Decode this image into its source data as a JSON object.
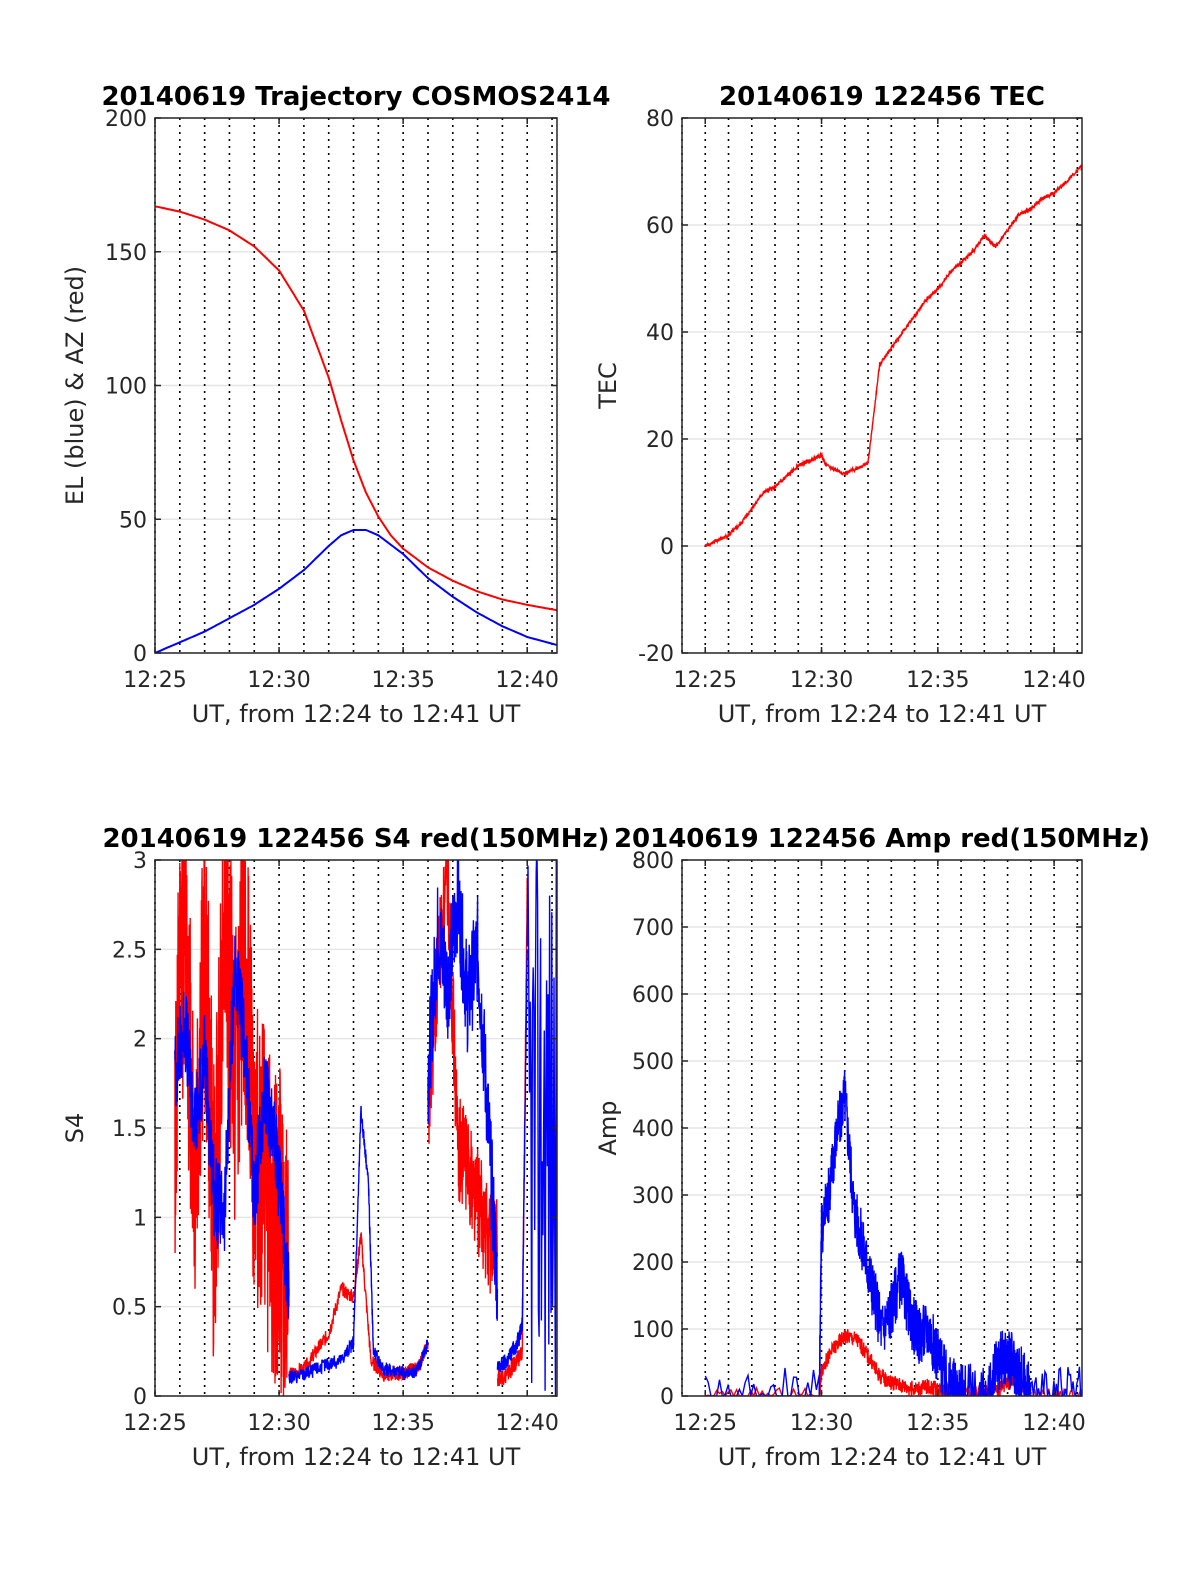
{
  "chart_data": [
    {
      "type": "line",
      "title": "20140619 Trajectory COSMOS2414",
      "xlabel": "UT, from 12:24 to 12:41 UT",
      "ylabel": "EL (blue) & AZ (red)",
      "xlim": [
        0,
        16.2
      ],
      "ylim": [
        0,
        200
      ],
      "xticks": [
        0,
        5,
        10,
        15
      ],
      "xtick_labels": [
        "12:25",
        "12:30",
        "12:35",
        "12:40"
      ],
      "yticks": [
        0,
        50,
        100,
        150,
        200
      ],
      "ytick_labels": [
        "0",
        "50",
        "100",
        "150",
        "200"
      ],
      "grid": true,
      "series": [
        {
          "color": "#ff0000",
          "noise": 0,
          "seed": 0,
          "x": [
            0,
            1,
            2,
            3,
            4,
            5,
            6,
            7,
            7.5,
            8,
            8.5,
            9,
            9.5,
            10,
            11,
            12,
            13,
            14,
            15,
            16.2
          ],
          "y": [
            167,
            165,
            162,
            158,
            152,
            143,
            128,
            103,
            87,
            72,
            60,
            51,
            44,
            39,
            32,
            27,
            23,
            20,
            18,
            16
          ]
        },
        {
          "color": "#0000ff",
          "noise": 0,
          "seed": 0,
          "x": [
            0,
            1,
            2,
            3,
            4,
            5,
            6,
            7,
            7.5,
            8,
            8.5,
            9,
            10,
            11,
            12,
            13,
            14,
            15,
            16.2
          ],
          "y": [
            0,
            4,
            8,
            13,
            18,
            24,
            31,
            40,
            44,
            46,
            46,
            44,
            37,
            28,
            21,
            15,
            10,
            6,
            3
          ]
        }
      ]
    },
    {
      "type": "line",
      "title": "20140619 122456 TEC",
      "xlabel": "UT, from 12:24 to 12:41 UT",
      "ylabel": "TEC",
      "xlim": [
        -1,
        16.2
      ],
      "ylim": [
        -20,
        80
      ],
      "xticks": [
        0,
        5,
        10,
        15
      ],
      "xtick_labels": [
        "12:25",
        "12:30",
        "12:35",
        "12:40"
      ],
      "yticks": [
        -20,
        0,
        20,
        40,
        60,
        80
      ],
      "ytick_labels": [
        "-20",
        "0",
        "20",
        "40",
        "60",
        "80"
      ],
      "grid": true,
      "series": [
        {
          "color": "#ff0000",
          "noise": 0.35,
          "seed": 7,
          "x": [
            0,
            0.5,
            1,
            1.5,
            2,
            2.5,
            3,
            3.5,
            4,
            4.5,
            5,
            5.2,
            6,
            6.5,
            7,
            7.5,
            8,
            8.5,
            9,
            9.5,
            10,
            10.5,
            11,
            11.5,
            12,
            12.5,
            13,
            13.5,
            14,
            14.5,
            15,
            15.5,
            16.2
          ],
          "y": [
            0,
            1,
            2,
            4,
            7,
            10,
            11,
            13,
            15,
            16,
            17,
            15,
            13.5,
            14.5,
            15.5,
            34,
            37,
            40,
            43,
            46,
            48,
            51,
            53,
            55,
            58,
            56,
            59,
            62,
            63,
            65,
            66,
            68,
            71
          ]
        }
      ]
    },
    {
      "type": "line",
      "title": "20140619 122456 S4 red(150MHz)",
      "xlabel": "UT, from 12:24 to 12:41 UT",
      "ylabel": "S4",
      "xlim": [
        0,
        16.2
      ],
      "ylim": [
        0,
        3
      ],
      "xticks": [
        0,
        5,
        10,
        15
      ],
      "xtick_labels": [
        "12:25",
        "12:30",
        "12:35",
        "12:40"
      ],
      "yticks": [
        0,
        0.5,
        1,
        1.5,
        2,
        2.5,
        3
      ],
      "ytick_labels": [
        "0",
        "0.5",
        "1",
        "1.5",
        "2",
        "2.5",
        "3"
      ],
      "grid": true,
      "series": [
        {
          "color": "#ff0000",
          "noise": 0.9,
          "seed": 11,
          "x": [
            0.8,
            1.2,
            1.6,
            2.0,
            2.4,
            2.8,
            3.2,
            3.6,
            4.0,
            4.4,
            4.8,
            5.0,
            5.4
          ],
          "y": [
            1.5,
            2.8,
            1.2,
            2.5,
            0.9,
            2.9,
            1.8,
            2.5,
            1.4,
            1.2,
            0.9,
            1.0,
            0.5
          ]
        },
        {
          "color": "#ff0000",
          "noise": 0.04,
          "seed": 13,
          "x": [
            5.4,
            6,
            6.5,
            7,
            7.5,
            8,
            8.3,
            8.7,
            9.2,
            9.7,
            10.2,
            10.6,
            11
          ],
          "y": [
            0.12,
            0.15,
            0.25,
            0.35,
            0.6,
            0.55,
            0.9,
            0.2,
            0.12,
            0.12,
            0.14,
            0.15,
            0.3
          ]
        },
        {
          "color": "#ff0000",
          "noise": 0.3,
          "seed": 17,
          "x": [
            11,
            11.4,
            11.8,
            12.2,
            12.6,
            13,
            13.4,
            13.8
          ],
          "y": [
            1.5,
            2.4,
            2.9,
            1.4,
            1.3,
            1.1,
            0.9,
            0.8
          ]
        },
        {
          "color": "#ff0000",
          "noise": 0.05,
          "seed": 19,
          "x": [
            13.8,
            14.2,
            14.6,
            14.8,
            15.0
          ],
          "y": [
            0.1,
            0.12,
            0.2,
            0.25,
            2.9
          ]
        },
        {
          "color": "#0000ff",
          "noise": 0.25,
          "seed": 23,
          "x": [
            0.8,
            1.2,
            1.6,
            2.0,
            2.4,
            2.8,
            3.2,
            3.6,
            4.0,
            4.4,
            4.8,
            5.0,
            5.4
          ],
          "y": [
            1.8,
            2.1,
            1.5,
            1.9,
            1.1,
            1.0,
            2.4,
            2.0,
            1.1,
            1.7,
            1.5,
            1.2,
            0.6
          ]
        },
        {
          "color": "#0000ff",
          "noise": 0.04,
          "seed": 29,
          "x": [
            5.4,
            6,
            6.5,
            7,
            7.5,
            8,
            8.3,
            8.6,
            8.8,
            9.2,
            9.7,
            10.2,
            10.6,
            11
          ],
          "y": [
            0.1,
            0.12,
            0.15,
            0.18,
            0.2,
            0.3,
            1.6,
            1.2,
            0.25,
            0.15,
            0.14,
            0.12,
            0.15,
            0.3
          ]
        },
        {
          "color": "#0000ff",
          "noise": 0.3,
          "seed": 31,
          "x": [
            11,
            11.4,
            11.8,
            12.2,
            12.6,
            13,
            13.4,
            13.8
          ],
          "y": [
            1.8,
            2.6,
            2.3,
            2.8,
            2.2,
            2.5,
            1.6,
            0.6
          ]
        },
        {
          "color": "#0000ff",
          "noise": 0.05,
          "seed": 37,
          "x": [
            13.8,
            14.2,
            14.6,
            14.8,
            15.0
          ],
          "y": [
            0.15,
            0.2,
            0.3,
            0.4,
            2.5
          ]
        },
        {
          "color": "#0000ff",
          "noise": 1.6,
          "seed": 41,
          "x": [
            15.0,
            16.2
          ],
          "y": [
            1.5,
            1.5
          ]
        }
      ]
    },
    {
      "type": "line",
      "title": "20140619 122456 Amp red(150MHz)",
      "xlabel": "UT, from 12:24 to 12:41 UT",
      "ylabel": "Amp",
      "xlim": [
        -1,
        16.2
      ],
      "ylim": [
        0,
        800
      ],
      "xticks": [
        0,
        5,
        10,
        15
      ],
      "xtick_labels": [
        "12:25",
        "12:30",
        "12:35",
        "12:40"
      ],
      "yticks": [
        0,
        100,
        200,
        300,
        400,
        500,
        600,
        700,
        800
      ],
      "ytick_labels": [
        "0",
        "100",
        "200",
        "300",
        "400",
        "500",
        "600",
        "700",
        "800"
      ],
      "grid": true,
      "series": [
        {
          "color": "#ff0000",
          "noise": 12,
          "seed": 43,
          "x": [
            0,
            4.9,
            5.0,
            5.5,
            6.0,
            6.5,
            7.0,
            7.5,
            8.0,
            8.5,
            9.0,
            9.5,
            10.0,
            10.5,
            11.0,
            12.5,
            13.0,
            13.3,
            13.6,
            14.0,
            16.2
          ],
          "y": [
            0,
            0,
            40,
            70,
            90,
            85,
            60,
            30,
            20,
            15,
            10,
            15,
            10,
            8,
            5,
            5,
            20,
            25,
            15,
            0,
            0
          ]
        },
        {
          "color": "#0000ff",
          "noise": 45,
          "seed": 47,
          "x": [
            0,
            4.9,
            5.0,
            5.3,
            5.6,
            6.0,
            6.4,
            6.8,
            7.2,
            7.6,
            8.0,
            8.4,
            8.8,
            9.2,
            9.6,
            10.0,
            10.4,
            10.8,
            11.2,
            12.2,
            12.5,
            12.8,
            13.2,
            13.6,
            14.0,
            16.2
          ],
          "y": [
            0,
            0,
            250,
            300,
            380,
            450,
            280,
            220,
            160,
            100,
            130,
            180,
            120,
            90,
            100,
            60,
            20,
            10,
            5,
            0,
            40,
            60,
            50,
            30,
            0,
            0
          ]
        }
      ]
    }
  ]
}
